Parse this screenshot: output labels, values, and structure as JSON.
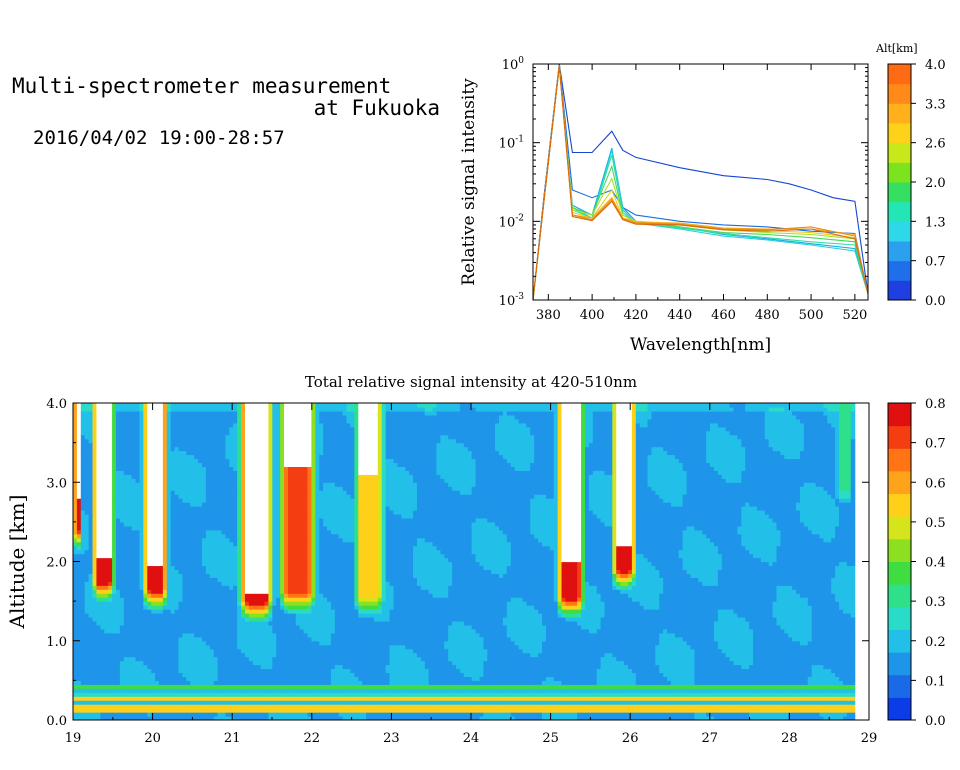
{
  "header": {
    "title_line1": "Multi-spectrometer measurement",
    "title_line2": "at Fukuoka",
    "date_range": "2016/04/02 19:00-28:57"
  },
  "chart_data": [
    {
      "type": "line",
      "title": "",
      "xlabel": "Wavelength[nm]",
      "ylabel": "Relative signal intensity",
      "xlim": [
        373,
        526
      ],
      "ylim": [
        0.001,
        1
      ],
      "yscale": "log",
      "x_ticks": [
        "380",
        "400",
        "420",
        "440",
        "460",
        "480",
        "500",
        "520"
      ],
      "y_ticks": [
        {
          "base": "10",
          "exp": "-3"
        },
        {
          "base": "10",
          "exp": "-2"
        },
        {
          "base": "10",
          "exp": "-1"
        },
        {
          "base": "10",
          "exp": "0"
        }
      ],
      "colorbar": {
        "title": "Alt[km]",
        "ticks": [
          "0.0",
          "0.7",
          "1.3",
          "2.0",
          "2.6",
          "3.3",
          "4.0"
        ],
        "colors": [
          "#1f3fe0",
          "#1f6fea",
          "#2aa0ee",
          "#2fd8e8",
          "#22e6b4",
          "#35e060",
          "#7ce41e",
          "#c8e81c",
          "#ffd21a",
          "#ffb01a",
          "#ff8a1a",
          "#ff6a14"
        ]
      },
      "series": [
        {
          "color": "#1448d0",
          "x": [
            373,
            378,
            385,
            391,
            400,
            409,
            414,
            420,
            440,
            460,
            470,
            480,
            490,
            500,
            510,
            520,
            526
          ],
          "y": [
            0.001,
            0.02,
            1.0,
            0.075,
            0.075,
            0.14,
            0.08,
            0.065,
            0.048,
            0.038,
            0.036,
            0.034,
            0.03,
            0.025,
            0.02,
            0.018,
            0.0012
          ]
        },
        {
          "color": "#1a6fe0",
          "x": [
            373,
            378,
            385,
            391,
            400,
            409,
            414,
            420,
            440,
            460,
            480,
            500,
            520,
            526
          ],
          "y": [
            0.001,
            0.02,
            1.0,
            0.025,
            0.02,
            0.025,
            0.015,
            0.012,
            0.01,
            0.009,
            0.0085,
            0.0075,
            0.007,
            0.0012
          ]
        },
        {
          "color": "#17a8e6",
          "x": [
            373,
            378,
            385,
            391,
            400,
            409,
            414,
            420,
            440,
            460,
            480,
            500,
            520,
            526
          ],
          "y": [
            0.001,
            0.018,
            0.95,
            0.016,
            0.012,
            0.085,
            0.015,
            0.01,
            0.0085,
            0.0068,
            0.006,
            0.0052,
            0.0045,
            0.0012
          ]
        },
        {
          "color": "#22d0d8",
          "x": [
            373,
            378,
            385,
            391,
            400,
            409,
            414,
            420,
            440,
            460,
            480,
            500,
            520,
            526
          ],
          "y": [
            0.001,
            0.018,
            0.95,
            0.015,
            0.011,
            0.08,
            0.014,
            0.0095,
            0.008,
            0.0065,
            0.0058,
            0.005,
            0.0042,
            0.0012
          ]
        },
        {
          "color": "#2ee0a8",
          "x": [
            373,
            378,
            385,
            391,
            400,
            409,
            414,
            420,
            440,
            460,
            480,
            500,
            520,
            526
          ],
          "y": [
            0.001,
            0.018,
            0.95,
            0.014,
            0.011,
            0.07,
            0.013,
            0.0095,
            0.0082,
            0.007,
            0.0062,
            0.0055,
            0.005,
            0.0012
          ]
        },
        {
          "color": "#45d85a",
          "x": [
            373,
            378,
            385,
            391,
            400,
            409,
            414,
            420,
            440,
            460,
            480,
            500,
            520,
            526
          ],
          "y": [
            0.001,
            0.018,
            0.95,
            0.015,
            0.012,
            0.05,
            0.012,
            0.0098,
            0.0085,
            0.0072,
            0.0068,
            0.0062,
            0.0055,
            0.0012
          ]
        },
        {
          "color": "#a8e030",
          "x": [
            373,
            378,
            385,
            391,
            400,
            409,
            414,
            420,
            440,
            460,
            480,
            500,
            520,
            526
          ],
          "y": [
            0.001,
            0.018,
            0.95,
            0.014,
            0.012,
            0.035,
            0.012,
            0.01,
            0.009,
            0.0078,
            0.0072,
            0.0068,
            0.006,
            0.0012
          ]
        },
        {
          "color": "#e8d020",
          "x": [
            373,
            378,
            385,
            391,
            400,
            409,
            414,
            420,
            440,
            460,
            480,
            500,
            520,
            526
          ],
          "y": [
            0.001,
            0.018,
            0.95,
            0.013,
            0.011,
            0.025,
            0.011,
            0.01,
            0.0092,
            0.008,
            0.0076,
            0.0072,
            0.0062,
            0.0012
          ]
        },
        {
          "color": "#f8a818",
          "x": [
            373,
            378,
            385,
            391,
            400,
            409,
            414,
            420,
            440,
            460,
            480,
            500,
            520,
            526
          ],
          "y": [
            0.001,
            0.018,
            0.95,
            0.012,
            0.011,
            0.02,
            0.011,
            0.0098,
            0.0095,
            0.0082,
            0.008,
            0.008,
            0.0068,
            0.0012
          ]
        },
        {
          "color": "#e88a18",
          "x": [
            373,
            378,
            385,
            391,
            400,
            409,
            414,
            420,
            440,
            460,
            480,
            500,
            520,
            526
          ],
          "y": [
            0.001,
            0.018,
            0.95,
            0.012,
            0.0105,
            0.019,
            0.0108,
            0.0095,
            0.0092,
            0.008,
            0.0078,
            0.0085,
            0.0065,
            0.0012
          ]
        },
        {
          "color": "#d86a10",
          "x": [
            373,
            378,
            385,
            391,
            400,
            409,
            414,
            420,
            440,
            460,
            480,
            500,
            520,
            526
          ],
          "y": [
            0.001,
            0.018,
            0.95,
            0.0115,
            0.0102,
            0.018,
            0.0105,
            0.0092,
            0.009,
            0.0078,
            0.0075,
            0.008,
            0.006,
            0.0012
          ]
        }
      ]
    },
    {
      "type": "heatmap",
      "title": "Total relative signal intensity at 420-510nm",
      "xlabel": "",
      "ylabel": "Altitude [km]",
      "xlim": [
        19,
        29
      ],
      "ylim": [
        0,
        4
      ],
      "x_ticks": [
        "19",
        "20",
        "21",
        "22",
        "23",
        "24",
        "25",
        "26",
        "27",
        "28",
        "29"
      ],
      "y_ticks": [
        "0.0",
        "1.0",
        "2.0",
        "3.0",
        "4.0"
      ],
      "data_end_hour": 28.82,
      "colorbar": {
        "ticks": [
          "0.0",
          "0.1",
          "0.2",
          "0.3",
          "0.4",
          "0.5",
          "0.6",
          "0.7",
          "0.8"
        ],
        "colors": [
          "#0a3ce8",
          "#1a6ae8",
          "#1f95ea",
          "#22c0e8",
          "#2adcc8",
          "#2ee08a",
          "#3fdc42",
          "#8ce020",
          "#d6e41c",
          "#ffd01a",
          "#ffa41a",
          "#ff7414",
          "#f43e12",
          "#e01010"
        ]
      },
      "background_level": 0.16,
      "features": [
        {
          "t0": 19.0,
          "t1": 19.12,
          "z0": 2.4,
          "z1": 4.0,
          "level": 0.75,
          "saturated_above": 2.8
        },
        {
          "t0": 19.22,
          "t1": 19.55,
          "z0": 1.75,
          "z1": 4.0,
          "level": 0.8,
          "saturated_above": 2.05
        },
        {
          "t0": 19.85,
          "t1": 20.22,
          "z0": 1.65,
          "z1": 4.0,
          "level": 0.8,
          "saturated_above": 1.95
        },
        {
          "t0": 21.05,
          "t1": 21.55,
          "z0": 1.5,
          "z1": 4.0,
          "level": 0.8,
          "saturated_above": 1.62
        },
        {
          "t0": 21.55,
          "t1": 22.1,
          "z0": 1.6,
          "z1": 4.0,
          "level": 0.7,
          "saturated_above": 3.2
        },
        {
          "t0": 22.5,
          "t1": 22.95,
          "z0": 1.55,
          "z1": 4.0,
          "level": 0.55,
          "saturated_above": 3.1
        },
        {
          "t0": 25.05,
          "t1": 25.45,
          "z0": 1.55,
          "z1": 4.0,
          "level": 0.8,
          "saturated_above": 2.0
        },
        {
          "t0": 25.75,
          "t1": 26.1,
          "z0": 1.9,
          "z1": 4.0,
          "level": 0.8,
          "saturated_above": 2.2
        },
        {
          "t0": 28.55,
          "t1": 28.82,
          "z0": 2.9,
          "z1": 4.0,
          "level": 0.3
        }
      ],
      "boundary_layer_bands": [
        {
          "z": 0.15,
          "level": 0.6
        },
        {
          "z": 0.28,
          "level": 0.45
        },
        {
          "z": 0.42,
          "level": 0.3
        }
      ]
    }
  ]
}
